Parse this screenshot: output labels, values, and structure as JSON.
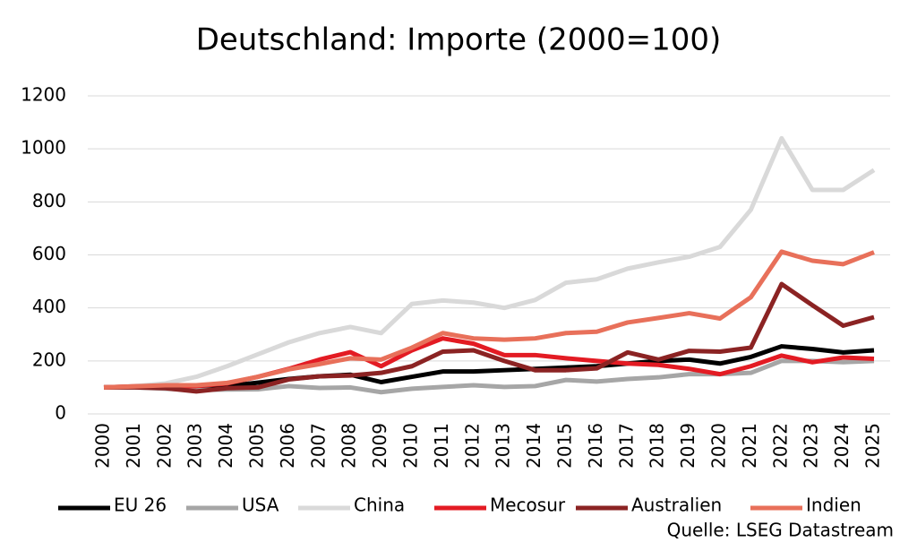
{
  "chart_data": {
    "type": "line",
    "title": "Deutschland: Importe (2000=100)",
    "source": "Quelle: LSEG Datastream",
    "categories": [
      "2000",
      "2001",
      "2002",
      "2003",
      "2004",
      "2005",
      "2006",
      "2007",
      "2008",
      "2009",
      "2010",
      "2011",
      "2012",
      "2013",
      "2014",
      "2015",
      "2016",
      "2017",
      "2018",
      "2019",
      "2020",
      "2021",
      "2022",
      "2023",
      "2024",
      "2025"
    ],
    "ylim": [
      0,
      1200
    ],
    "yticks": [
      0,
      200,
      400,
      600,
      800,
      1000,
      1200
    ],
    "grid": true,
    "series": [
      {
        "name": "EU 26",
        "color": "#000000",
        "values": [
          100,
          102,
          100,
          95,
          105,
          118,
          132,
          142,
          148,
          120,
          140,
          160,
          160,
          165,
          170,
          175,
          180,
          190,
          200,
          205,
          190,
          215,
          255,
          245,
          232,
          240
        ]
      },
      {
        "name": "USA",
        "color": "#a6a6a6",
        "values": [
          100,
          100,
          95,
          90,
          92,
          93,
          105,
          98,
          100,
          82,
          95,
          102,
          108,
          102,
          105,
          128,
          122,
          132,
          138,
          150,
          150,
          155,
          200,
          200,
          195,
          200
        ]
      },
      {
        "name": "China",
        "color": "#d9d9d9",
        "values": [
          100,
          105,
          115,
          140,
          180,
          225,
          270,
          305,
          328,
          305,
          415,
          428,
          420,
          400,
          430,
          495,
          508,
          548,
          572,
          593,
          630,
          770,
          1040,
          845,
          845,
          920
        ]
      },
      {
        "name": "Mecosur",
        "color": "#e31b23",
        "values": [
          100,
          104,
          105,
          105,
          115,
          140,
          170,
          205,
          233,
          180,
          240,
          285,
          265,
          222,
          222,
          210,
          200,
          190,
          185,
          170,
          150,
          180,
          220,
          195,
          213,
          208
        ]
      },
      {
        "name": "Australien",
        "color": "#8b2323",
        "values": [
          100,
          100,
          97,
          85,
          97,
          100,
          130,
          142,
          145,
          155,
          180,
          235,
          240,
          200,
          165,
          165,
          172,
          232,
          205,
          238,
          235,
          250,
          490,
          410,
          333,
          365
        ]
      },
      {
        "name": "Indien",
        "color": "#e8705a",
        "values": [
          100,
          104,
          108,
          108,
          117,
          140,
          168,
          188,
          210,
          205,
          250,
          305,
          285,
          280,
          285,
          305,
          310,
          345,
          362,
          380,
          360,
          440,
          612,
          578,
          565,
          610
        ]
      }
    ]
  }
}
